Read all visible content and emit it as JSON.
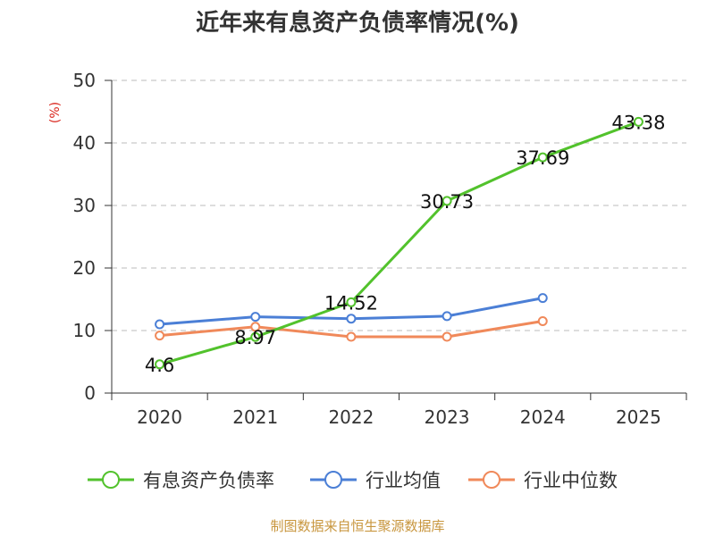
{
  "chart_data": {
    "type": "line",
    "title": "近年来有息资产负债率情况(%)",
    "ylabel": "(%)",
    "xlabel": "",
    "categories": [
      "2020",
      "2021",
      "2022",
      "2023",
      "2024",
      "2025"
    ],
    "y_ticks": [
      "0",
      "10",
      "20",
      "30",
      "40",
      "50"
    ],
    "ylim": [
      0,
      50
    ],
    "grid": true,
    "legend_position": "bottom",
    "series": [
      {
        "name": "有息资产负债率",
        "values": [
          4.6,
          8.97,
          14.52,
          30.73,
          37.69,
          43.38
        ],
        "labels": [
          "4.6",
          "8.97",
          "14.52",
          "30.73",
          "37.69",
          "43.38"
        ],
        "color": "#52c22c"
      },
      {
        "name": "行业均值",
        "values": [
          11.0,
          12.2,
          11.9,
          12.3,
          15.2,
          null
        ],
        "color": "#4b7fd6"
      },
      {
        "name": "行业中位数",
        "values": [
          9.2,
          10.6,
          9.0,
          9.0,
          11.5,
          null
        ],
        "color": "#f0895a"
      }
    ],
    "source": "制图数据来自恒生聚源数据库",
    "colors": {
      "ylabel": "#d9251c",
      "source": "#c8963e",
      "axis": "#333333",
      "grid": "#bbbbbb"
    }
  }
}
